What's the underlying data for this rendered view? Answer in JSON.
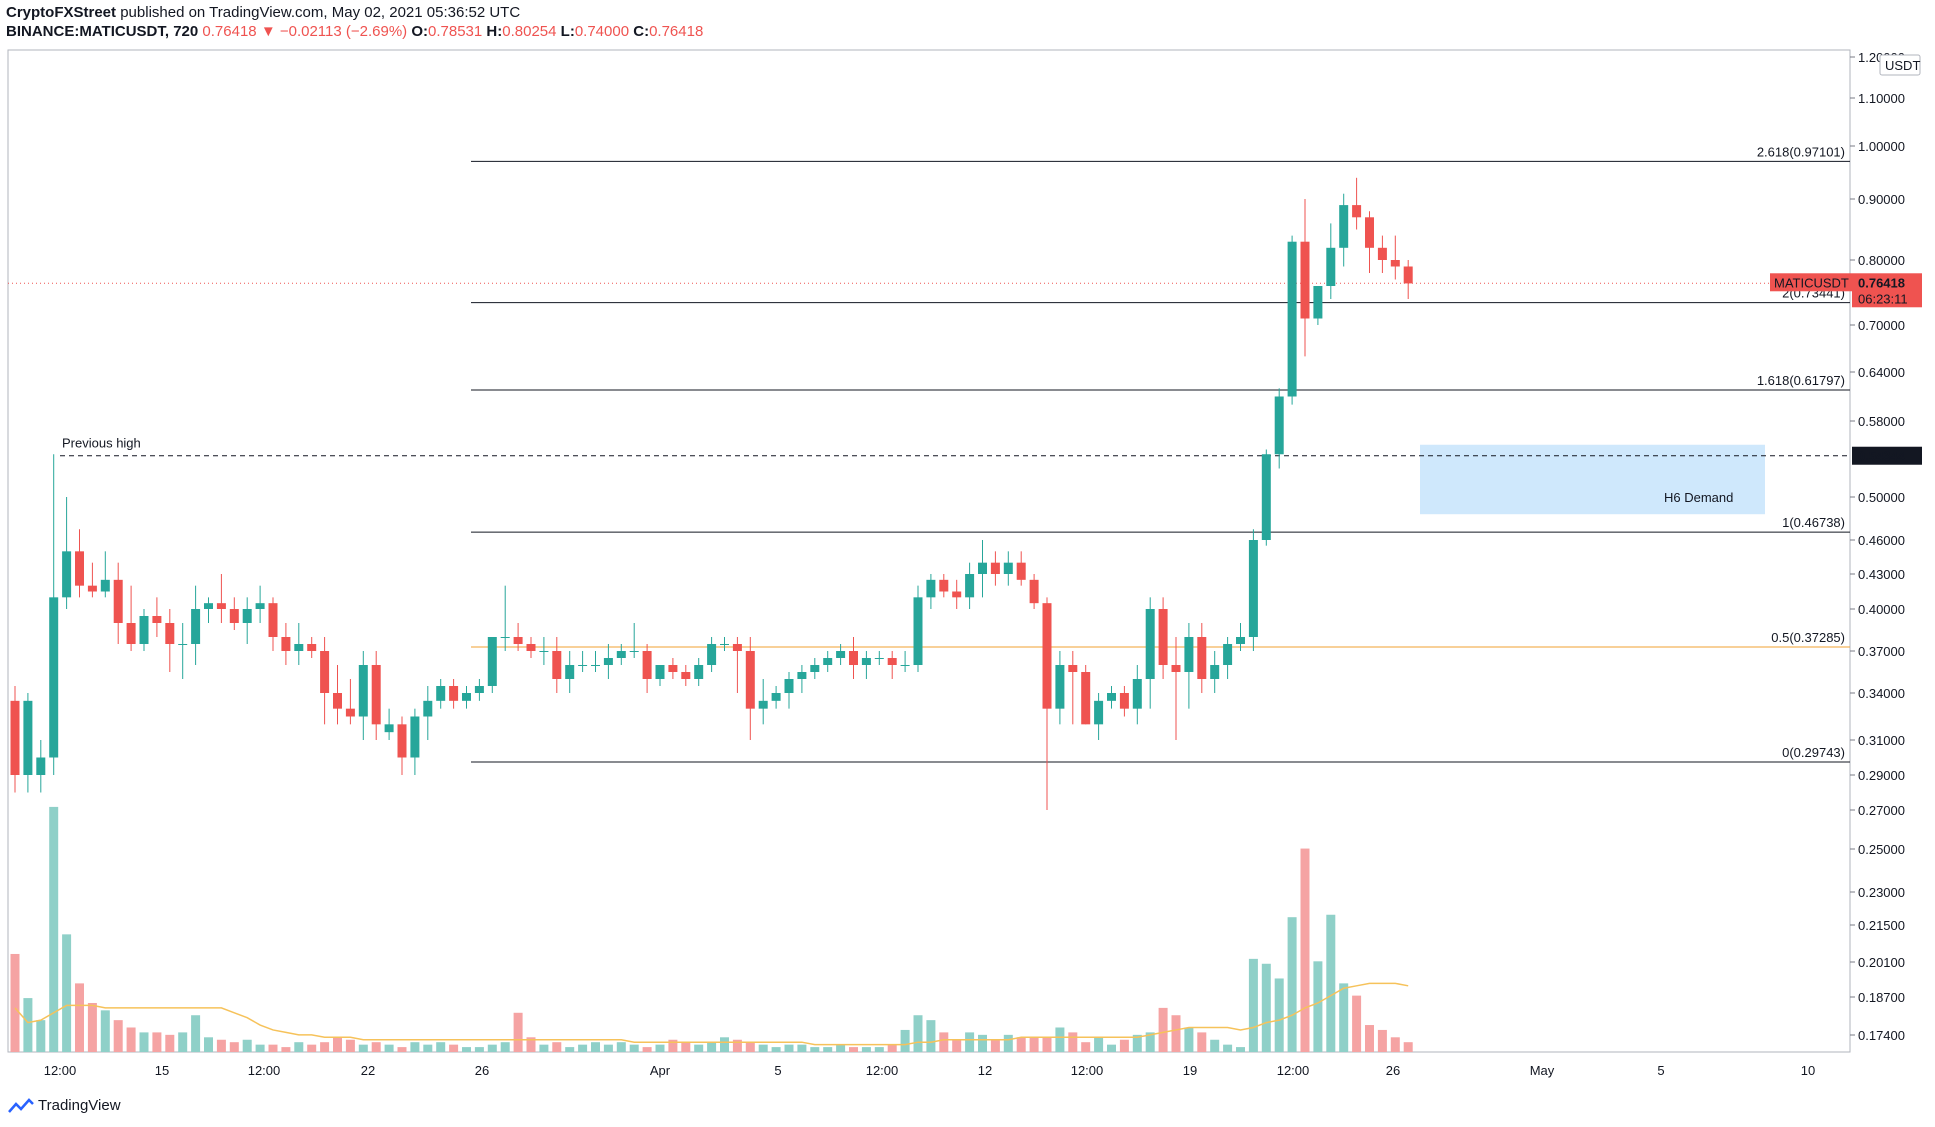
{
  "header": {
    "publisher": "CryptoFXStreet",
    "published_text": "published on TradingView.com, May 02, 2021 05:36:52 UTC",
    "symbol": "BINANCE:MATICUSDT, 720",
    "last": "0.76418",
    "change": "▼ −0.02113 (−2.69%)",
    "o_label": "O:",
    "o_value": "0.78531",
    "h_label": "H:",
    "h_value": "0.80254",
    "l_label": "L:",
    "l_value": "0.74000",
    "c_label": "C:",
    "c_value": "0.76418"
  },
  "footer": {
    "brand": "TradingView"
  },
  "colors": {
    "up": "#26a69a",
    "down": "#ef5350",
    "up_vol": "#8fd0c8",
    "down_vol": "#f5a3a3",
    "ma": "#f6c25a",
    "fib_half": "#f0a030",
    "demand": "#bbdefb"
  },
  "chart_data": {
    "type": "candlestick",
    "currency_label": "USDT",
    "price_axis": {
      "ticks": [
        "1.20000",
        "1.10000",
        "1.00000",
        "0.90000",
        "0.80000",
        "0.70000",
        "0.64000",
        "0.58000",
        "0.50000",
        "0.46000",
        "0.43000",
        "0.40000",
        "0.37000",
        "0.34000",
        "0.31000",
        "0.29000",
        "0.27000",
        "0.25000",
        "0.23000",
        "0.21500",
        "0.20100",
        "0.18700",
        "0.17400"
      ]
    },
    "time_axis": {
      "labels": [
        "12:00",
        "15",
        "12:00",
        "22",
        "26",
        "Apr",
        "5",
        "12:00",
        "12",
        "12:00",
        "19",
        "12:00",
        "26",
        "May",
        "5",
        "10"
      ]
    },
    "current_price": {
      "symbol": "MATICUSDT",
      "value": "0.76418",
      "countdown": "06:23:11"
    },
    "previous_high": {
      "label": "Previous high",
      "value": "0.54344"
    },
    "fib_levels": [
      {
        "label": "2.618(0.97101)",
        "value": 0.97101
      },
      {
        "label": "2(0.73441)",
        "value": 0.73441
      },
      {
        "label": "1.618(0.61797)",
        "value": 0.61797
      },
      {
        "label": "1(0.46738)",
        "value": 0.46738
      },
      {
        "label": "0.5(0.37285)",
        "value": 0.37285
      },
      {
        "label": "0(0.29743)",
        "value": 0.29743
      }
    ],
    "demand_zone": {
      "label": "H6 Demand",
      "top": 0.555,
      "bottom": 0.484
    },
    "candles": [
      [
        0.335,
        0.345,
        0.28,
        0.29
      ],
      [
        0.29,
        0.34,
        0.28,
        0.335
      ],
      [
        0.29,
        0.31,
        0.28,
        0.3
      ],
      [
        0.3,
        0.545,
        0.29,
        0.41
      ],
      [
        0.41,
        0.5,
        0.4,
        0.45
      ],
      [
        0.45,
        0.47,
        0.41,
        0.42
      ],
      [
        0.42,
        0.44,
        0.41,
        0.415
      ],
      [
        0.415,
        0.45,
        0.41,
        0.425
      ],
      [
        0.425,
        0.44,
        0.375,
        0.39
      ],
      [
        0.39,
        0.42,
        0.37,
        0.375
      ],
      [
        0.375,
        0.4,
        0.37,
        0.395
      ],
      [
        0.395,
        0.41,
        0.38,
        0.39
      ],
      [
        0.39,
        0.4,
        0.355,
        0.375
      ],
      [
        0.375,
        0.39,
        0.35,
        0.375
      ],
      [
        0.375,
        0.42,
        0.36,
        0.4
      ],
      [
        0.4,
        0.41,
        0.39,
        0.405
      ],
      [
        0.405,
        0.43,
        0.39,
        0.4
      ],
      [
        0.4,
        0.41,
        0.385,
        0.39
      ],
      [
        0.39,
        0.41,
        0.375,
        0.4
      ],
      [
        0.4,
        0.42,
        0.39,
        0.405
      ],
      [
        0.405,
        0.41,
        0.37,
        0.38
      ],
      [
        0.38,
        0.39,
        0.36,
        0.37
      ],
      [
        0.37,
        0.39,
        0.36,
        0.375
      ],
      [
        0.375,
        0.38,
        0.365,
        0.37
      ],
      [
        0.37,
        0.38,
        0.32,
        0.34
      ],
      [
        0.34,
        0.36,
        0.32,
        0.33
      ],
      [
        0.33,
        0.35,
        0.32,
        0.325
      ],
      [
        0.325,
        0.37,
        0.31,
        0.36
      ],
      [
        0.36,
        0.37,
        0.31,
        0.32
      ],
      [
        0.315,
        0.33,
        0.31,
        0.32
      ],
      [
        0.32,
        0.325,
        0.29,
        0.3
      ],
      [
        0.3,
        0.33,
        0.29,
        0.325
      ],
      [
        0.325,
        0.345,
        0.31,
        0.335
      ],
      [
        0.335,
        0.35,
        0.33,
        0.345
      ],
      [
        0.345,
        0.35,
        0.33,
        0.335
      ],
      [
        0.335,
        0.345,
        0.33,
        0.34
      ],
      [
        0.34,
        0.35,
        0.335,
        0.345
      ],
      [
        0.345,
        0.38,
        0.34,
        0.38
      ],
      [
        0.38,
        0.42,
        0.37,
        0.38
      ],
      [
        0.38,
        0.39,
        0.37,
        0.375
      ],
      [
        0.375,
        0.38,
        0.365,
        0.37
      ],
      [
        0.37,
        0.38,
        0.36,
        0.37
      ],
      [
        0.37,
        0.38,
        0.34,
        0.35
      ],
      [
        0.35,
        0.37,
        0.34,
        0.36
      ],
      [
        0.36,
        0.37,
        0.355,
        0.36
      ],
      [
        0.36,
        0.37,
        0.355,
        0.36
      ],
      [
        0.36,
        0.375,
        0.35,
        0.365
      ],
      [
        0.365,
        0.375,
        0.36,
        0.37
      ],
      [
        0.37,
        0.39,
        0.365,
        0.37
      ],
      [
        0.37,
        0.375,
        0.34,
        0.35
      ],
      [
        0.35,
        0.36,
        0.345,
        0.36
      ],
      [
        0.36,
        0.365,
        0.35,
        0.355
      ],
      [
        0.355,
        0.36,
        0.345,
        0.35
      ],
      [
        0.35,
        0.365,
        0.345,
        0.36
      ],
      [
        0.36,
        0.38,
        0.355,
        0.375
      ],
      [
        0.375,
        0.38,
        0.37,
        0.375
      ],
      [
        0.375,
        0.38,
        0.34,
        0.37
      ],
      [
        0.37,
        0.38,
        0.31,
        0.33
      ],
      [
        0.33,
        0.35,
        0.32,
        0.335
      ],
      [
        0.335,
        0.345,
        0.33,
        0.34
      ],
      [
        0.34,
        0.355,
        0.33,
        0.35
      ],
      [
        0.35,
        0.36,
        0.34,
        0.355
      ],
      [
        0.355,
        0.365,
        0.35,
        0.36
      ],
      [
        0.36,
        0.37,
        0.355,
        0.365
      ],
      [
        0.365,
        0.375,
        0.36,
        0.37
      ],
      [
        0.37,
        0.38,
        0.35,
        0.36
      ],
      [
        0.36,
        0.37,
        0.35,
        0.365
      ],
      [
        0.365,
        0.37,
        0.36,
        0.365
      ],
      [
        0.365,
        0.37,
        0.35,
        0.36
      ],
      [
        0.36,
        0.37,
        0.355,
        0.36
      ],
      [
        0.36,
        0.42,
        0.355,
        0.41
      ],
      [
        0.41,
        0.43,
        0.4,
        0.425
      ],
      [
        0.425,
        0.43,
        0.41,
        0.415
      ],
      [
        0.415,
        0.425,
        0.4,
        0.41
      ],
      [
        0.41,
        0.44,
        0.4,
        0.43
      ],
      [
        0.43,
        0.46,
        0.41,
        0.44
      ],
      [
        0.44,
        0.45,
        0.42,
        0.43
      ],
      [
        0.43,
        0.45,
        0.42,
        0.44
      ],
      [
        0.44,
        0.45,
        0.42,
        0.425
      ],
      [
        0.425,
        0.43,
        0.4,
        0.405
      ],
      [
        0.405,
        0.41,
        0.27,
        0.33
      ],
      [
        0.33,
        0.37,
        0.32,
        0.36
      ],
      [
        0.36,
        0.37,
        0.32,
        0.355
      ],
      [
        0.355,
        0.36,
        0.32,
        0.32
      ],
      [
        0.32,
        0.34,
        0.31,
        0.335
      ],
      [
        0.335,
        0.345,
        0.33,
        0.34
      ],
      [
        0.34,
        0.345,
        0.325,
        0.33
      ],
      [
        0.33,
        0.36,
        0.32,
        0.35
      ],
      [
        0.35,
        0.41,
        0.33,
        0.4
      ],
      [
        0.4,
        0.41,
        0.35,
        0.36
      ],
      [
        0.36,
        0.38,
        0.31,
        0.355
      ],
      [
        0.355,
        0.39,
        0.33,
        0.38
      ],
      [
        0.38,
        0.39,
        0.34,
        0.35
      ],
      [
        0.35,
        0.37,
        0.34,
        0.36
      ],
      [
        0.36,
        0.38,
        0.35,
        0.375
      ],
      [
        0.375,
        0.39,
        0.37,
        0.38
      ],
      [
        0.38,
        0.47,
        0.37,
        0.46
      ],
      [
        0.46,
        0.55,
        0.455,
        0.545
      ],
      [
        0.545,
        0.62,
        0.53,
        0.61
      ],
      [
        0.61,
        0.84,
        0.6,
        0.83
      ],
      [
        0.83,
        0.9,
        0.66,
        0.71
      ],
      [
        0.71,
        0.76,
        0.7,
        0.76
      ],
      [
        0.76,
        0.86,
        0.74,
        0.82
      ],
      [
        0.82,
        0.91,
        0.79,
        0.89
      ],
      [
        0.89,
        0.94,
        0.85,
        0.87
      ],
      [
        0.87,
        0.88,
        0.78,
        0.82
      ],
      [
        0.82,
        0.84,
        0.78,
        0.8
      ],
      [
        0.8,
        0.84,
        0.77,
        0.79
      ],
      [
        0.79,
        0.8,
        0.74,
        0.764
      ]
    ],
    "volumes": [
      0.21,
      0.192,
      0.183,
      0.27,
      0.218,
      0.198,
      0.19,
      0.187,
      0.183,
      0.18,
      0.178,
      0.178,
      0.177,
      0.178,
      0.185,
      0.176,
      0.175,
      0.174,
      0.175,
      0.173,
      0.173,
      0.172,
      0.174,
      0.173,
      0.174,
      0.176,
      0.175,
      0.173,
      0.174,
      0.173,
      0.172,
      0.174,
      0.173,
      0.174,
      0.173,
      0.172,
      0.172,
      0.173,
      0.174,
      0.186,
      0.176,
      0.173,
      0.174,
      0.172,
      0.173,
      0.174,
      0.173,
      0.174,
      0.173,
      0.172,
      0.173,
      0.175,
      0.174,
      0.173,
      0.174,
      0.176,
      0.175,
      0.174,
      0.173,
      0.172,
      0.173,
      0.173,
      0.172,
      0.172,
      0.173,
      0.172,
      0.172,
      0.172,
      0.173,
      0.179,
      0.185,
      0.183,
      0.178,
      0.175,
      0.178,
      0.177,
      0.175,
      0.177,
      0.176,
      0.176,
      0.176,
      0.18,
      0.178,
      0.174,
      0.176,
      0.173,
      0.175,
      0.177,
      0.178,
      0.188,
      0.185,
      0.18,
      0.178,
      0.175,
      0.173,
      0.172,
      0.208,
      0.206,
      0.2,
      0.225,
      0.253,
      0.207,
      0.226,
      0.198,
      0.193,
      0.181,
      0.179,
      0.176,
      0.174
    ],
    "volume_ma": [
      0.188,
      0.182,
      0.183,
      0.186,
      0.189,
      0.189,
      0.189,
      0.188,
      0.188,
      0.188,
      0.188,
      0.188,
      0.188,
      0.188,
      0.188,
      0.188,
      0.188,
      0.186,
      0.184,
      0.181,
      0.179,
      0.178,
      0.177,
      0.177,
      0.176,
      0.176,
      0.176,
      0.175,
      0.175,
      0.175,
      0.175,
      0.175,
      0.175,
      0.175,
      0.175,
      0.175,
      0.175,
      0.175,
      0.175,
      0.175,
      0.175,
      0.175,
      0.175,
      0.175,
      0.175,
      0.175,
      0.175,
      0.175,
      0.174,
      0.174,
      0.174,
      0.174,
      0.174,
      0.174,
      0.174,
      0.174,
      0.174,
      0.174,
      0.174,
      0.174,
      0.174,
      0.174,
      0.173,
      0.173,
      0.173,
      0.173,
      0.173,
      0.173,
      0.173,
      0.173,
      0.174,
      0.174,
      0.175,
      0.175,
      0.175,
      0.175,
      0.175,
      0.175,
      0.176,
      0.176,
      0.176,
      0.176,
      0.176,
      0.176,
      0.176,
      0.176,
      0.176,
      0.176,
      0.177,
      0.178,
      0.179,
      0.18,
      0.18,
      0.18,
      0.18,
      0.179,
      0.18,
      0.182,
      0.183,
      0.185,
      0.188,
      0.19,
      0.193,
      0.196,
      0.197,
      0.198,
      0.198,
      0.198,
      0.197
    ]
  }
}
